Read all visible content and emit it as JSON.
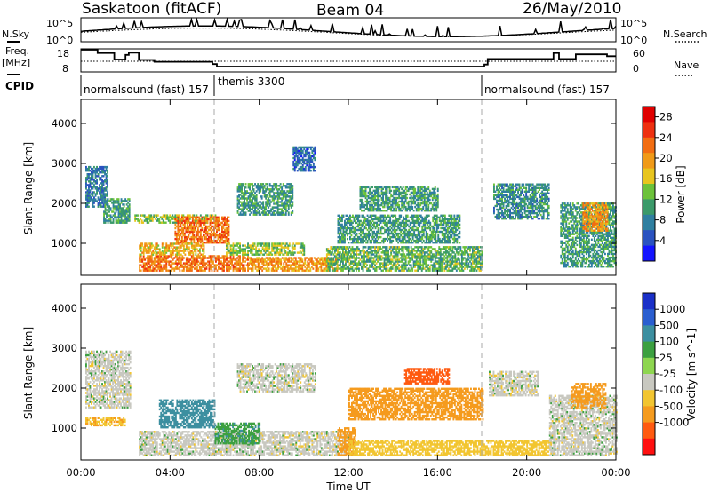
{
  "header": {
    "title": "Saskatoon (fitACF)",
    "beam": "Beam 04",
    "date": "26/May/2010"
  },
  "side_labels": {
    "nsky": "N.Sky",
    "freq_line1": "Freq.",
    "freq_line2": "[MHz]",
    "cpid": "CPID",
    "nsearch": "N.Search",
    "nave": "Nave"
  },
  "noise_panel": {
    "y_ticks_left": [
      "10^5",
      "10^0"
    ],
    "y_ticks_right": [
      "10^5",
      "10^0"
    ]
  },
  "freq_panel": {
    "y_ticks_left": [
      "18",
      "8"
    ],
    "y_ticks_right": [
      "60",
      "0"
    ],
    "freq_steps": [
      [
        0,
        17.6
      ],
      [
        0.75,
        16.2
      ],
      [
        1.5,
        13.4
      ],
      [
        2,
        15.4
      ],
      [
        2.15,
        16.3
      ],
      [
        2.6,
        13.2
      ],
      [
        3.3,
        12.4
      ],
      [
        5.9,
        11.4
      ],
      [
        6.1,
        10.3
      ],
      [
        18.1,
        11.2
      ],
      [
        18.25,
        13.6
      ],
      [
        21.2,
        16.2
      ],
      [
        21.45,
        13.6
      ],
      [
        22.2,
        15.6
      ],
      [
        23.6,
        14.8
      ],
      [
        24,
        14.8
      ]
    ]
  },
  "cpid_segments": [
    {
      "label": "normalsound (fast) 157",
      "start": 0.0
    },
    {
      "label": "themis 3300",
      "start": 6.0
    },
    {
      "label": "normalsound (fast) 157",
      "start": 18.0
    }
  ],
  "chart_data": [
    {
      "type": "heatmap",
      "title": "",
      "xlabel": "Time UT",
      "ylabel": "Slant Range [km]",
      "xlim": [
        0,
        24
      ],
      "ylim": [
        200,
        4600
      ],
      "x_ticks": [
        "00:00",
        "04:00",
        "08:00",
        "12:00",
        "16:00",
        "20:00",
        "00:00"
      ],
      "y_ticks": [
        "1000",
        "2000",
        "3000",
        "4000"
      ],
      "colorbar": {
        "label": "Power [dB]",
        "ticks": [
          "4",
          "8",
          "12",
          "16",
          "20",
          "24",
          "28"
        ],
        "range": [
          0,
          30
        ]
      },
      "regions": [
        {
          "t": [
            0.2,
            1.2
          ],
          "r": [
            1900,
            2900
          ],
          "v": 7
        },
        {
          "t": [
            1.0,
            2.2
          ],
          "r": [
            1500,
            2100
          ],
          "v": 10
        },
        {
          "t": [
            2.4,
            6.0
          ],
          "r": [
            1500,
            1700
          ],
          "v": 14
        },
        {
          "t": [
            4.2,
            6.6
          ],
          "r": [
            1000,
            1650
          ],
          "v": 22
        },
        {
          "t": [
            2.6,
            7.5
          ],
          "r": [
            300,
            700
          ],
          "v": 22
        },
        {
          "t": [
            2.6,
            5.5
          ],
          "r": [
            700,
            1000
          ],
          "v": 18
        },
        {
          "t": [
            7.5,
            11.5
          ],
          "r": [
            300,
            650
          ],
          "v": 20
        },
        {
          "t": [
            6.5,
            10.0
          ],
          "r": [
            700,
            1000
          ],
          "v": 14
        },
        {
          "t": [
            7.0,
            9.5
          ],
          "r": [
            1700,
            2500
          ],
          "v": 10
        },
        {
          "t": [
            9.5,
            10.5
          ],
          "r": [
            2800,
            3400
          ],
          "v": 6
        },
        {
          "t": [
            11.0,
            18.0
          ],
          "r": [
            300,
            900
          ],
          "v": 12
        },
        {
          "t": [
            11.5,
            17.0
          ],
          "r": [
            1000,
            1700
          ],
          "v": 10
        },
        {
          "t": [
            12.5,
            16.0
          ],
          "r": [
            1800,
            2400
          ],
          "v": 10
        },
        {
          "t": [
            18.5,
            21.0
          ],
          "r": [
            1600,
            2500
          ],
          "v": 9
        },
        {
          "t": [
            21.5,
            24.0
          ],
          "r": [
            400,
            2000
          ],
          "v": 10
        },
        {
          "t": [
            22.5,
            23.6
          ],
          "r": [
            1300,
            2000
          ],
          "v": 20
        }
      ]
    },
    {
      "type": "heatmap",
      "title": "",
      "xlabel": "Time UT",
      "ylabel": "Slant Range [km]",
      "xlim": [
        0,
        24
      ],
      "ylim": [
        200,
        4600
      ],
      "x_ticks": [
        "00:00",
        "04:00",
        "08:00",
        "12:00",
        "16:00",
        "20:00",
        "00:00"
      ],
      "y_ticks": [
        "1000",
        "2000",
        "3000",
        "4000"
      ],
      "colorbar": {
        "label": "Velocity [m s^-1]",
        "ticks": [
          "1000",
          "500",
          "100",
          "25",
          "-25",
          "-100",
          "-500",
          "-1000"
        ],
        "range": [
          -1000,
          1000
        ]
      },
      "regions": [
        {
          "t": [
            0.2,
            2.2
          ],
          "r": [
            1500,
            2900
          ],
          "v": 0
        },
        {
          "t": [
            0.2,
            2.0
          ],
          "r": [
            1050,
            1250
          ],
          "v": -90
        },
        {
          "t": [
            2.6,
            12.0
          ],
          "r": [
            300,
            900
          ],
          "v": 0
        },
        {
          "t": [
            3.5,
            6.0
          ],
          "r": [
            1000,
            1700
          ],
          "v": 300
        },
        {
          "t": [
            6.0,
            8.0
          ],
          "r": [
            600,
            1100
          ],
          "v": 80
        },
        {
          "t": [
            7.0,
            10.5
          ],
          "r": [
            1900,
            2600
          ],
          "v": 0
        },
        {
          "t": [
            11.5,
            12.3
          ],
          "r": [
            300,
            1000
          ],
          "v": -150
        },
        {
          "t": [
            12.0,
            18.0
          ],
          "r": [
            1200,
            2000
          ],
          "v": -150
        },
        {
          "t": [
            14.5,
            16.5
          ],
          "r": [
            2100,
            2500
          ],
          "v": -600
        },
        {
          "t": [
            12.0,
            21.0
          ],
          "r": [
            300,
            700
          ],
          "v": -60
        },
        {
          "t": [
            18.3,
            20.5
          ],
          "r": [
            1800,
            2400
          ],
          "v": 0
        },
        {
          "t": [
            21.0,
            24.0
          ],
          "r": [
            300,
            1800
          ],
          "v": 0
        },
        {
          "t": [
            22.0,
            23.5
          ],
          "r": [
            1500,
            2100
          ],
          "v": -250
        }
      ]
    }
  ]
}
